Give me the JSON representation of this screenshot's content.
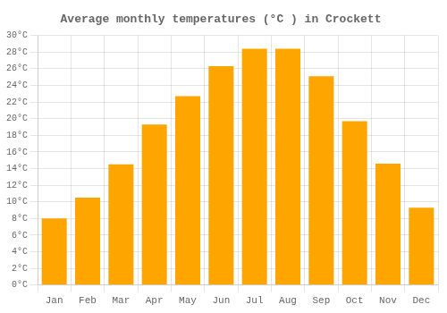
{
  "chart_data": {
    "type": "bar",
    "title": "Average monthly temperatures (°C ) in Crockett",
    "categories": [
      "Jan",
      "Feb",
      "Mar",
      "Apr",
      "May",
      "Jun",
      "Jul",
      "Aug",
      "Sep",
      "Oct",
      "Nov",
      "Dec"
    ],
    "values": [
      8.0,
      10.5,
      14.5,
      19.3,
      22.7,
      26.3,
      28.4,
      28.4,
      25.1,
      19.7,
      14.6,
      9.3
    ],
    "color": "#FFA500",
    "ylim": [
      0,
      30
    ],
    "yticks": [
      {
        "value": 0,
        "label": "0°C"
      },
      {
        "value": 2,
        "label": "2°C"
      },
      {
        "value": 4,
        "label": "4°C"
      },
      {
        "value": 6,
        "label": "6°C"
      },
      {
        "value": 8,
        "label": "8°C"
      },
      {
        "value": 10,
        "label": "10°C"
      },
      {
        "value": 12,
        "label": "12°C"
      },
      {
        "value": 14,
        "label": "14°C"
      },
      {
        "value": 16,
        "label": "16°C"
      },
      {
        "value": 18,
        "label": "18°C"
      },
      {
        "value": 20,
        "label": "20°C"
      },
      {
        "value": 22,
        "label": "22°C"
      },
      {
        "value": 24,
        "label": "24°C"
      },
      {
        "value": 26,
        "label": "26°C"
      },
      {
        "value": 28,
        "label": "28°C"
      },
      {
        "value": 30,
        "label": "30°C"
      }
    ],
    "grid": true
  }
}
